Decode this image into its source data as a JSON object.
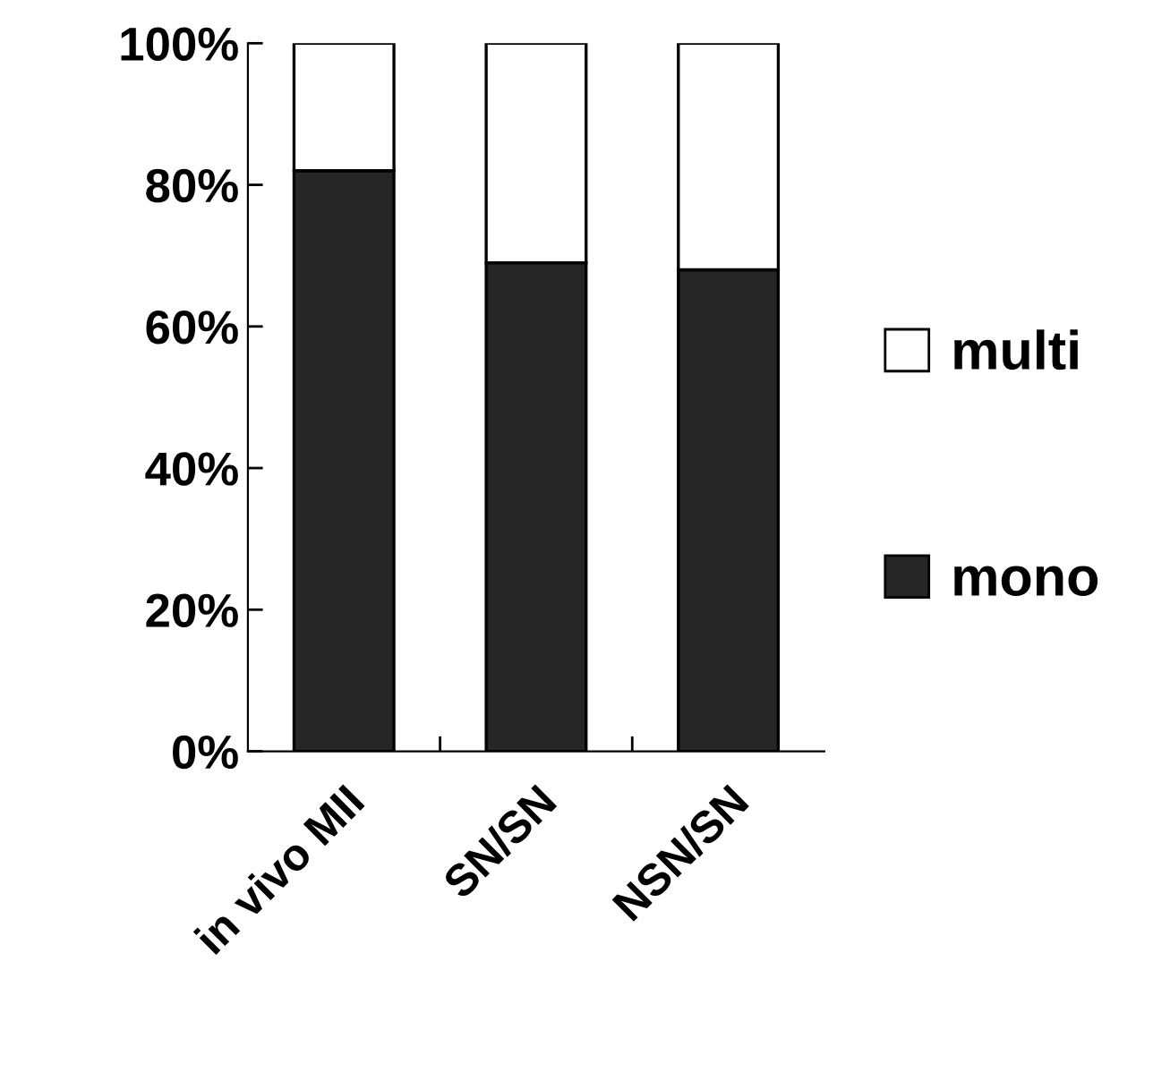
{
  "chart_data": {
    "type": "bar",
    "stacked": true,
    "categories": [
      "in vivo MII",
      "SN/SN",
      "NSN/SN"
    ],
    "series": [
      {
        "name": "mono",
        "color": "#262626",
        "values": [
          82,
          69,
          68
        ]
      },
      {
        "name": "multi",
        "color": "#ffffff",
        "values": [
          18,
          31,
          32
        ]
      }
    ],
    "ylim": [
      0,
      100
    ],
    "yticks": [
      {
        "value": 0,
        "label": "0%"
      },
      {
        "value": 20,
        "label": "20%"
      },
      {
        "value": 40,
        "label": "40%"
      },
      {
        "value": 60,
        "label": "60%"
      },
      {
        "value": 80,
        "label": "80%"
      },
      {
        "value": 100,
        "label": "100%"
      }
    ],
    "legend": "right",
    "grid": false
  }
}
